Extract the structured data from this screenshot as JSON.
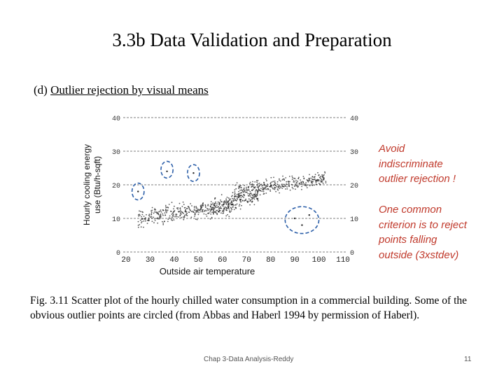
{
  "slide": {
    "title": "3.3b Data Validation and Preparation",
    "subtitle_prefix": "(d) ",
    "subtitle_underlined": "Outlier rejection by visual means",
    "note1": [
      "Avoid",
      "indiscriminate",
      "outlier rejection !"
    ],
    "note2": [
      "One common",
      "criterion is to reject",
      "points falling",
      "outside (3xstdev)"
    ],
    "caption": "Fig. 3.11 Scatter plot of the hourly chilled water consumption in a commercial building. Some of the obvious outlier points are circled (from Abbas and Haberl 1994 by permission of Haberl).",
    "footer": "Chap 3-Data Analysis-Reddy",
    "page_number": "11"
  },
  "colors": {
    "note_text": "#c0392b",
    "outlier_circle": "#2b5ea8",
    "points": "#222222"
  },
  "chart_data": {
    "type": "scatter",
    "xlabel": "Outside air temperature",
    "ylabel": "Hourly cooling energy use (Btu/h-sqft)",
    "xlim": [
      20,
      110
    ],
    "ylim": [
      0,
      40
    ],
    "x_ticks": [
      "20",
      "30",
      "40",
      "50",
      "60",
      "70",
      "80",
      "90",
      "100",
      "110"
    ],
    "y_ticks": [
      "0",
      "10",
      "20",
      "30",
      "40"
    ],
    "grid": "dashed horizontal lines at y ticks",
    "clusters": [
      {
        "x_range": [
          25,
          65
        ],
        "y_center_start": 10,
        "y_center_end": 14,
        "spread": 2.5
      },
      {
        "x_range": [
          55,
          75
        ],
        "y_center_start": 13,
        "y_center_end": 17,
        "spread": 2.5
      },
      {
        "x_range": [
          65,
          103
        ],
        "y_center_start": 18,
        "y_center_end": 22,
        "spread": 2
      }
    ],
    "outliers": [
      {
        "x": 37,
        "y": 24
      },
      {
        "x": 48,
        "y": 23.5
      },
      {
        "x": 25,
        "y": 18
      },
      {
        "x": 90,
        "y": 10
      },
      {
        "x": 93,
        "y": 8
      },
      {
        "x": 96,
        "y": 11
      }
    ],
    "outlier_circles": [
      {
        "x": 37,
        "y": 24.5,
        "rx": 2.5,
        "ry": 2.5
      },
      {
        "x": 48,
        "y": 23.5,
        "rx": 2.5,
        "ry": 2.5
      },
      {
        "x": 25,
        "y": 18,
        "rx": 2.5,
        "ry": 2.5
      },
      {
        "x": 93,
        "y": 9.5,
        "rx": 7,
        "ry": 4
      }
    ]
  }
}
